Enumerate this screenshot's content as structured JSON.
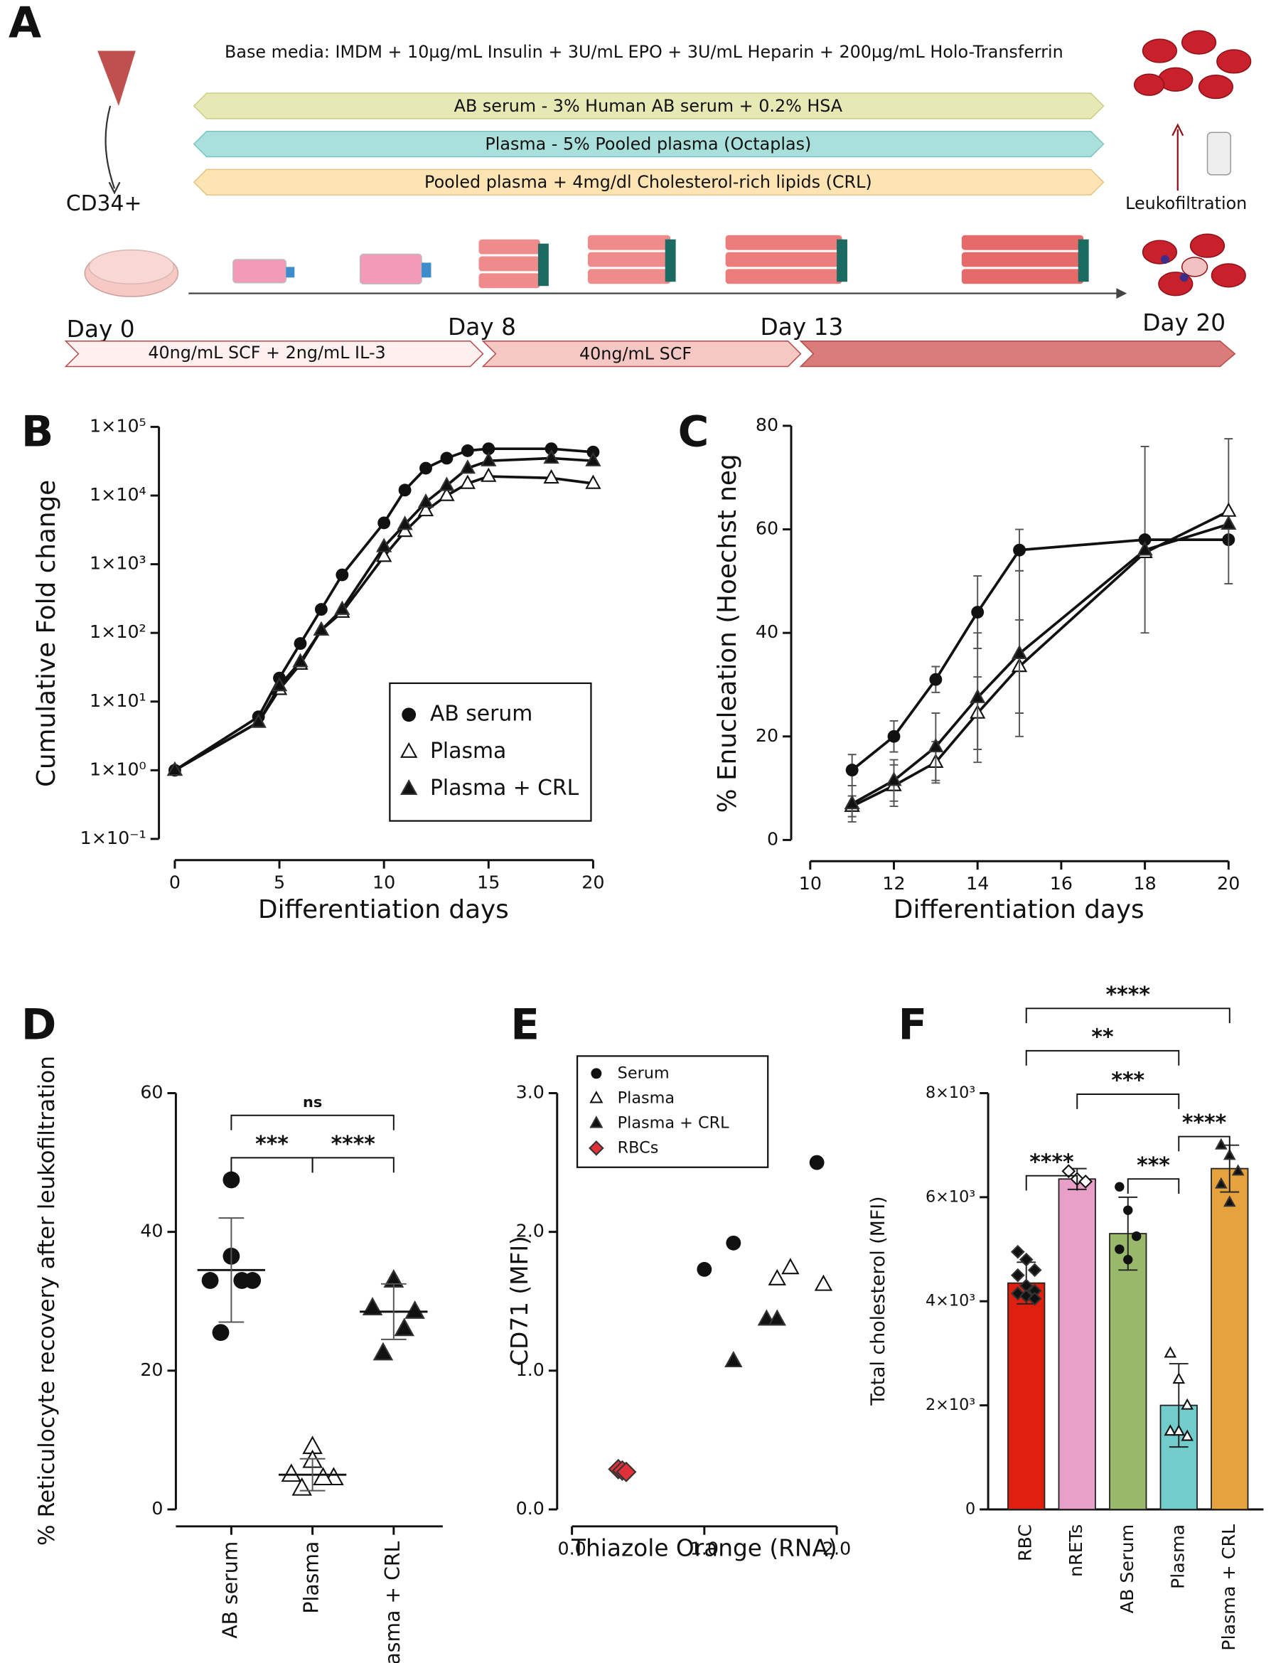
{
  "schematic": {
    "panel": "A",
    "base_media": "Base media: IMDM + 10µg/mL Insulin + 3U/mL EPO + 3U/mL Heparin + 200µg/mL Holo-Transferrin",
    "conditions": [
      "AB serum - 3% Human AB serum + 0.2% HSA",
      "Plasma - 5% Pooled plasma (Octaplas)",
      "Pooled plasma + 4mg/dl Cholesterol-rich lipids (CRL)"
    ],
    "cell_label": "CD34+",
    "leukofiltration": "Leukofiltration",
    "days": [
      "Day 0",
      "Day 8",
      "Day 13",
      "Day 20"
    ],
    "cytokines": [
      "40ng/mL SCF + 2ng/mL IL-3",
      "40ng/mL SCF"
    ]
  },
  "chart_data": [
    {
      "type": "line",
      "panel": "B",
      "log_y": true,
      "x_label": "Differentiation days",
      "y_label": "Cumulative Fold change",
      "x": [
        0,
        4,
        5,
        6,
        7,
        8,
        10,
        11,
        12,
        13,
        14,
        15,
        18,
        20
      ],
      "series": [
        {
          "name": "AB serum",
          "color": "#111111",
          "marker": "circle",
          "values": [
            1,
            6,
            22,
            70,
            220,
            700,
            4000,
            12000,
            25000,
            35000,
            45000,
            48000,
            48000,
            43000
          ]
        },
        {
          "name": "Plasma",
          "color": "#111111",
          "marker": "triangle-open",
          "values": [
            1,
            5,
            15,
            35,
            110,
            200,
            1300,
            3000,
            6000,
            10000,
            15000,
            19000,
            18000,
            15000
          ]
        },
        {
          "name": "Plasma + CRL",
          "color": "#111111",
          "marker": "triangle",
          "values": [
            1,
            5,
            17,
            38,
            110,
            220,
            1800,
            3800,
            8000,
            14000,
            25000,
            32000,
            35000,
            32000
          ]
        }
      ],
      "xlim": [
        0,
        20
      ],
      "xticks": [
        0,
        5,
        10,
        15,
        20
      ],
      "ylim": [
        0.1,
        100000
      ],
      "yticks": [
        {
          "value": 0.1,
          "label": "1×10⁻¹"
        },
        {
          "value": 1,
          "label": "1×10⁰"
        },
        {
          "value": 10,
          "label": "1×10¹"
        },
        {
          "value": 100,
          "label": "1×10²"
        },
        {
          "value": 1000,
          "label": "1×10³"
        },
        {
          "value": 10000,
          "label": "1×10⁴"
        },
        {
          "value": 100000,
          "label": "1×10⁵"
        }
      ],
      "legend": "lower right"
    },
    {
      "type": "line",
      "panel": "C",
      "x_label": "Differentiation days",
      "y_label": "% Enucleation (Hoechst neg",
      "x": [
        11,
        12,
        13,
        14,
        15,
        18,
        20
      ],
      "series": [
        {
          "name": "AB serum",
          "color": "#111111",
          "marker": "circle",
          "values": [
            13.5,
            20,
            31,
            44,
            56,
            58,
            58
          ],
          "errors": [
            3,
            3,
            2.5,
            7,
            4,
            18,
            0
          ]
        },
        {
          "name": "Plasma",
          "color": "#111111",
          "marker": "triangle-open",
          "values": [
            6.5,
            10.5,
            15,
            24.5,
            33.5,
            55.5,
            63.5
          ],
          "errors": [
            2,
            4,
            4,
            7,
            9,
            0,
            14
          ]
        },
        {
          "name": "Plasma + CRL",
          "color": "#111111",
          "marker": "triangle",
          "values": [
            7,
            11.5,
            18,
            27.5,
            36,
            56,
            61
          ],
          "errors": [
            3.5,
            4,
            6.5,
            12.5,
            16,
            0,
            0
          ]
        }
      ],
      "xlim": [
        10,
        20
      ],
      "xticks": [
        10,
        12,
        14,
        16,
        18,
        20
      ],
      "ylim": [
        0,
        80
      ],
      "yticks": [
        0,
        20,
        40,
        60,
        80
      ]
    },
    {
      "type": "dot",
      "panel": "D",
      "y_label": "% Reticulocyte recovery after leukofiltration",
      "categories": [
        "AB serum",
        "Plasma",
        "Plasma + CRL"
      ],
      "points": [
        [
          47.5,
          36.5,
          33,
          33,
          33,
          25.5
        ],
        [
          9,
          7,
          5,
          4.5,
          4.5,
          3
        ],
        [
          33,
          33,
          29,
          28.5,
          26,
          22.5
        ]
      ],
      "marker": [
        "circle",
        "triangle-open",
        "triangle"
      ],
      "color": "#111111",
      "values": [
        34.5,
        5,
        28.5
      ],
      "errors": [
        7.5,
        2.3,
        4
      ],
      "ylim": [
        0,
        60
      ],
      "yticks": [
        0,
        20,
        40,
        60
      ],
      "annotations": [
        "ns",
        "***",
        "****"
      ]
    },
    {
      "type": "scatter",
      "panel": "E",
      "x_label": "Thiazole Orange (RNA)",
      "y_label": "CD71 (MFI)",
      "series": [
        {
          "name": "Serum",
          "color": "#111111",
          "marker": "circle",
          "x": [
            1.0,
            1.22,
            1.85
          ],
          "values": [
            1.73,
            1.92,
            2.5
          ]
        },
        {
          "name": "Plasma",
          "color": "#111111",
          "marker": "triangle-open",
          "x": [
            1.55,
            1.65,
            1.9
          ],
          "values": [
            1.66,
            1.74,
            1.62
          ]
        },
        {
          "name": "Plasma + CRL",
          "color": "#111111",
          "marker": "triangle",
          "x": [
            1.22,
            1.47,
            1.55
          ],
          "values": [
            1.07,
            1.37,
            1.37
          ]
        },
        {
          "name": "RBCs",
          "color": "#e0303a",
          "marker": "diamond",
          "x": [
            0.35,
            0.38,
            0.41
          ],
          "values": [
            0.29,
            0.28,
            0.27
          ]
        }
      ],
      "xlim": [
        0,
        2
      ],
      "xticks": [
        {
          "value": 0,
          "label": "0.0"
        },
        {
          "value": 1,
          "label": "1.0"
        },
        {
          "value": 2,
          "label": "2.0"
        }
      ],
      "ylim": [
        0,
        3
      ],
      "yticks": [
        {
          "value": 0,
          "label": "0.0"
        },
        {
          "value": 1,
          "label": "1.0"
        },
        {
          "value": 2,
          "label": "2.0"
        },
        {
          "value": 3,
          "label": "3.0"
        }
      ],
      "legend": "upper left"
    },
    {
      "type": "bar",
      "panel": "F",
      "y_label": "Total cholesterol (MFI)",
      "categories": [
        "RBC",
        "nRETs",
        "AB Serum",
        "Plasma",
        "Plasma + CRL"
      ],
      "values": [
        4350,
        6350,
        5300,
        2000,
        6550
      ],
      "errors": [
        400,
        200,
        700,
        800,
        450
      ],
      "colors": [
        "#e0200f",
        "#e8a0c8",
        "#9ab86a",
        "#72cccc",
        "#e6a23c"
      ],
      "marker": [
        "diamond",
        "diamond-open",
        "circle",
        "triangle-open",
        "triangle"
      ],
      "points": [
        [
          4950,
          4800,
          4600,
          4500,
          4300,
          4200,
          4150,
          4100,
          4050
        ],
        [
          6500,
          6350,
          6300
        ],
        [
          6200,
          5750,
          5250,
          5000,
          4800
        ],
        [
          3000,
          2500,
          2000,
          1500,
          1500,
          1400
        ],
        [
          7000,
          6800,
          6500,
          6250,
          5900
        ]
      ],
      "ylim": [
        0,
        8000
      ],
      "yticks": [
        0,
        {
          "value": 2000,
          "label": "2×10³"
        },
        {
          "value": 4000,
          "label": "4×10³"
        },
        {
          "value": 6000,
          "label": "6×10³"
        },
        {
          "value": 8000,
          "label": "8×10³"
        }
      ],
      "annotations": [
        "****",
        "**",
        "***",
        "****",
        "****",
        "***"
      ]
    }
  ]
}
